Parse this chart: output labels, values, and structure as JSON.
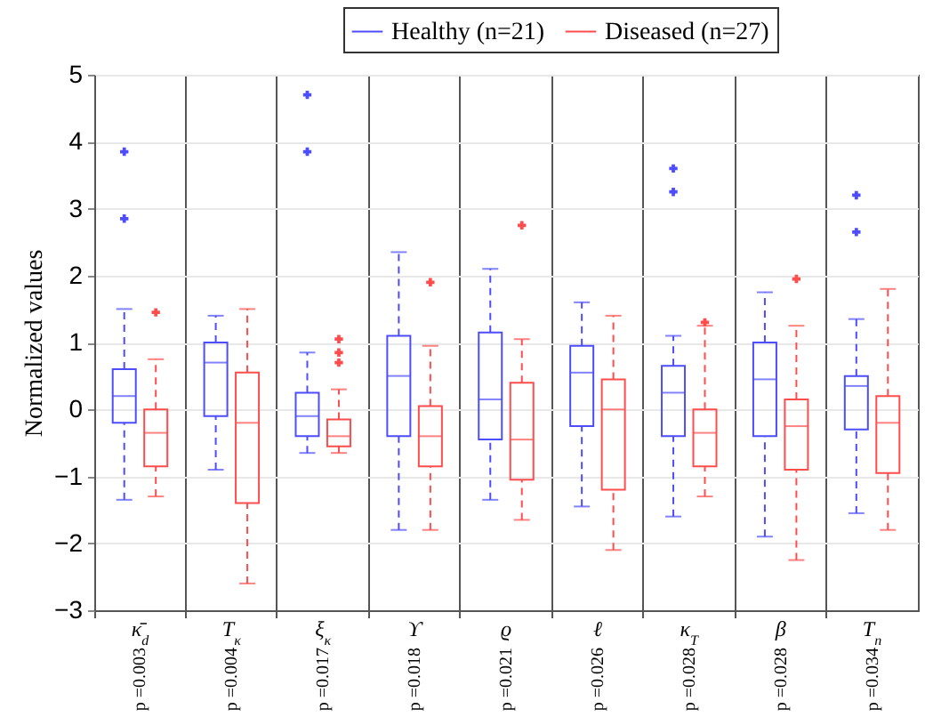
{
  "chart_data": {
    "type": "box",
    "ylabel": "Normalized values",
    "categories": [
      "κ̄$_{d}$",
      "T$_{κ}$",
      "ξ$_{κ}$",
      "ϒ",
      "ϱ",
      "ℓ",
      "κ$_{T}$",
      "β",
      "T$_{n}$"
    ],
    "ylim": [
      -3,
      5
    ],
    "yticks": [
      -3,
      -2,
      -1,
      0,
      1,
      2,
      3,
      4,
      5
    ],
    "grid": true,
    "legend": "top",
    "series": [
      {
        "name": "Healthy (n=21)",
        "color": "#4d4dff",
        "boxes": [
          {
            "low": -1.35,
            "q1": -0.2,
            "median": 0.2,
            "q3": 0.6,
            "high": 1.5,
            "outliers": [
              3.85,
              2.85
            ]
          },
          {
            "low": -0.9,
            "q1": -0.1,
            "median": 0.7,
            "q3": 1.0,
            "high": 1.4
          },
          {
            "low": -0.65,
            "q1": -0.4,
            "median": -0.1,
            "q3": 0.25,
            "high": 0.85,
            "outliers": [
              4.7,
              3.85
            ]
          },
          {
            "low": -1.8,
            "q1": -0.4,
            "median": 0.5,
            "q3": 1.1,
            "high": 2.35
          },
          {
            "low": -1.35,
            "q1": -0.45,
            "median": 0.15,
            "q3": 1.15,
            "high": 2.1
          },
          {
            "low": -1.45,
            "q1": -0.25,
            "median": 0.55,
            "q3": 0.95,
            "high": 1.6
          },
          {
            "low": -1.6,
            "q1": -0.4,
            "median": 0.25,
            "q3": 0.65,
            "high": 1.1,
            "outliers": [
              3.6,
              3.25
            ]
          },
          {
            "low": -1.9,
            "q1": -0.4,
            "median": 0.45,
            "q3": 1.0,
            "high": 1.75
          },
          {
            "low": -1.55,
            "q1": -0.3,
            "median": 0.35,
            "q3": 0.5,
            "high": 1.35,
            "outliers": [
              3.2,
              2.65
            ]
          }
        ]
      },
      {
        "name": "Diseased (n=27)",
        "color": "#ff4d4d",
        "boxes": [
          {
            "low": -1.3,
            "q1": -0.85,
            "median": -0.35,
            "q3": 0.0,
            "high": 0.75,
            "outliers": [
              1.45
            ]
          },
          {
            "low": -2.6,
            "q1": -1.4,
            "median": -0.2,
            "q3": 0.55,
            "high": 1.5
          },
          {
            "low": -0.65,
            "q1": -0.55,
            "median": -0.4,
            "q3": -0.15,
            "high": 0.3,
            "outliers": [
              1.05,
              0.85,
              0.7
            ]
          },
          {
            "low": -1.8,
            "q1": -0.85,
            "median": -0.4,
            "q3": 0.05,
            "high": 0.95,
            "outliers": [
              1.9
            ]
          },
          {
            "low": -1.65,
            "q1": -1.05,
            "median": -0.45,
            "q3": 0.4,
            "high": 1.05,
            "outliers": [
              2.75
            ]
          },
          {
            "low": -2.1,
            "q1": -1.2,
            "median": 0.0,
            "q3": 0.45,
            "high": 1.4
          },
          {
            "low": -1.3,
            "q1": -0.85,
            "median": -0.35,
            "q3": 0.0,
            "high": 1.25,
            "outliers": [
              1.3
            ]
          },
          {
            "low": -2.25,
            "q1": -0.9,
            "median": -0.25,
            "q3": 0.15,
            "high": 1.25,
            "outliers": [
              1.95
            ]
          },
          {
            "low": -1.8,
            "q1": -0.95,
            "median": -0.2,
            "q3": 0.2,
            "high": 1.8
          }
        ]
      }
    ],
    "annotations": [
      "p =0.003",
      "p =0.004",
      "p =0.017",
      "p =0.018",
      "p =0.021",
      "p =0.026",
      "p =0.028",
      "p =0.028",
      "p =0.034"
    ]
  }
}
